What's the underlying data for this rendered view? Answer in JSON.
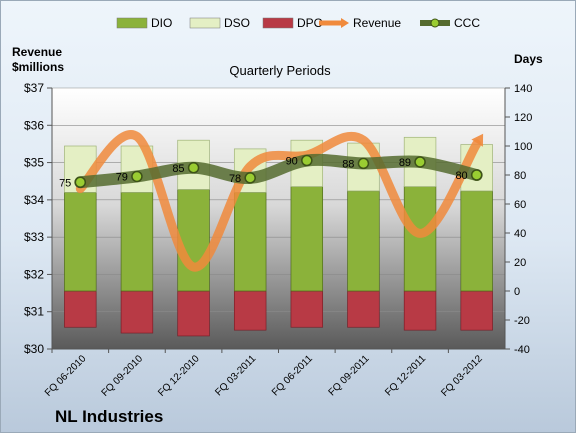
{
  "chart_data": {
    "type": "bar",
    "title": "Quarterly Periods",
    "footer": "NL Industries",
    "left_axis_label_line1": "Revenue",
    "left_axis_label_line2": "$millions",
    "right_axis_label": "Days",
    "categories": [
      "FQ 06-2010",
      "FQ 09-2010",
      "FQ 12-2010",
      "FQ 03-2011",
      "FQ 06-2011",
      "FQ 09-2011",
      "FQ 12-2011",
      "FQ 03-2012"
    ],
    "left_axis": {
      "min": 30,
      "max": 37,
      "ticks": [
        "$30",
        "$31",
        "$32",
        "$33",
        "$34",
        "$35",
        "$36",
        "$37"
      ]
    },
    "right_axis": {
      "min": -40,
      "max": 140,
      "ticks": [
        "-40",
        "-20",
        "0",
        "20",
        "40",
        "60",
        "80",
        "100",
        "120",
        "140"
      ]
    },
    "series": [
      {
        "name": "DIO",
        "axis": "right",
        "values": [
          68,
          68,
          70,
          68,
          72,
          69,
          72,
          69
        ],
        "color": "#8bb23a"
      },
      {
        "name": "DSO",
        "axis": "right",
        "values": [
          32,
          32,
          34,
          30,
          32,
          33,
          34,
          32
        ],
        "color": "#e4efc4"
      },
      {
        "name": "DPO",
        "axis": "right",
        "values": [
          -25,
          -29,
          -31,
          -27,
          -25,
          -25,
          -27,
          -27
        ],
        "color": "#b83a45"
      },
      {
        "name": "Revenue",
        "axis": "left",
        "values": [
          34.3,
          35.7,
          32.2,
          34.9,
          35.2,
          35.6,
          33.1,
          35.5
        ],
        "color": "#f08a3c"
      },
      {
        "name": "CCC",
        "axis": "right",
        "values": [
          75,
          79,
          85,
          78,
          90,
          88,
          89,
          80
        ],
        "labels": [
          "75",
          "79",
          "85",
          "78",
          "90",
          "88",
          "89",
          "80"
        ],
        "color": "#556b2f"
      }
    ],
    "legend": {
      "placement": "top",
      "entries": [
        "DIO",
        "DSO",
        "DPO",
        "Revenue",
        "CCC"
      ]
    }
  }
}
